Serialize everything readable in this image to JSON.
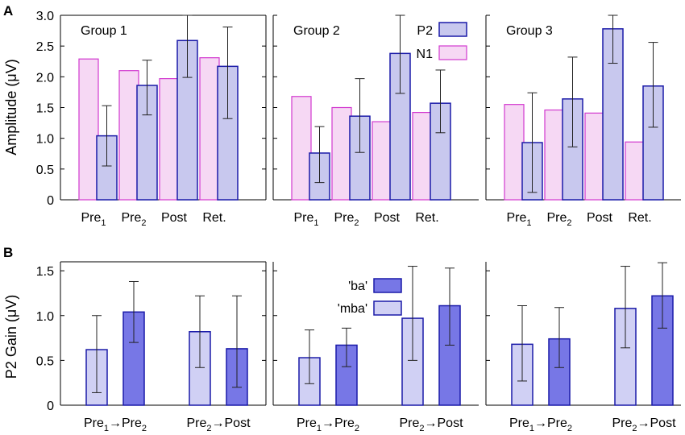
{
  "chart_data": [
    {
      "type": "bar",
      "panel": "A",
      "ylabel": "Amplitude (μV)",
      "ylim": [
        0,
        3.0
      ],
      "yticks": [
        "0",
        "0.5",
        "1.0",
        "1.5",
        "2.0",
        "2.5",
        "3.0"
      ],
      "categories": [
        {
          "base": "Pre",
          "sub": "1"
        },
        {
          "base": "Pre",
          "sub": "2"
        },
        {
          "base": "Post",
          "sub": ""
        },
        {
          "base": "Ret.",
          "sub": ""
        }
      ],
      "legend": [
        {
          "label": "P2",
          "fill": "#c8c8ee",
          "stroke": "#1a1aa8"
        },
        {
          "label": "N1",
          "fill": "#f6d8f4",
          "stroke": "#d239cf"
        }
      ],
      "groups": [
        {
          "name": "Group 1",
          "n1": [
            2.29,
            2.1,
            1.97,
            2.31
          ],
          "p2": [
            1.04,
            1.86,
            2.59,
            2.17
          ],
          "p2_err_low": [
            0.55,
            1.38,
            1.99,
            1.32
          ],
          "p2_err_high": [
            1.53,
            2.27,
            3.0,
            2.81
          ]
        },
        {
          "name": "Group 2",
          "n1": [
            1.68,
            1.5,
            1.27,
            1.42
          ],
          "p2": [
            0.76,
            1.36,
            2.38,
            1.57
          ],
          "p2_err_low": [
            0.28,
            0.77,
            1.73,
            1.09
          ],
          "p2_err_high": [
            1.19,
            1.97,
            3.0,
            2.11
          ]
        },
        {
          "name": "Group 3",
          "n1": [
            1.55,
            1.46,
            1.41,
            0.94
          ],
          "p2": [
            0.93,
            1.64,
            2.78,
            1.85
          ],
          "p2_err_low": [
            0.12,
            0.86,
            2.22,
            1.18
          ],
          "p2_err_high": [
            1.74,
            2.32,
            3.0,
            2.56
          ]
        }
      ]
    },
    {
      "type": "bar",
      "panel": "B",
      "ylabel": "P2 Gain (μV)",
      "ylim": [
        0,
        1.6
      ],
      "yticks": [
        "0",
        "0.5",
        "1.0",
        "1.5"
      ],
      "comparisons": [
        {
          "from": "Pre",
          "from_sub": "1",
          "arrow": "→",
          "to": "Pre",
          "to_sub": "2"
        },
        {
          "from": "Pre",
          "from_sub": "2",
          "arrow": "→",
          "to": "Post",
          "to_sub": ""
        }
      ],
      "legend": [
        {
          "label": "'ba'",
          "fill": "#7777e6",
          "stroke": "#1a1aa8"
        },
        {
          "label": "'mba'",
          "fill": "#d0d0f4",
          "stroke": "#1a1aa8"
        }
      ],
      "groups": [
        {
          "mba": [
            0.62,
            0.82
          ],
          "ba": [
            1.04,
            0.63
          ],
          "mba_err_low": [
            0.14,
            0.42
          ],
          "mba_err_high": [
            1.0,
            1.22
          ],
          "ba_err_low": [
            0.7,
            0.2
          ],
          "ba_err_high": [
            1.38,
            1.22
          ]
        },
        {
          "mba": [
            0.53,
            0.97
          ],
          "ba": [
            0.67,
            1.11
          ],
          "mba_err_low": [
            0.24,
            0.5
          ],
          "mba_err_high": [
            0.84,
            1.55
          ],
          "ba_err_low": [
            0.43,
            0.67
          ],
          "ba_err_high": [
            0.86,
            1.53
          ]
        },
        {
          "mba": [
            0.68,
            1.08
          ],
          "ba": [
            0.74,
            1.22
          ],
          "mba_err_low": [
            0.27,
            0.64
          ],
          "mba_err_high": [
            1.11,
            1.55
          ],
          "ba_err_low": [
            0.42,
            0.86
          ],
          "ba_err_high": [
            1.09,
            1.59
          ]
        }
      ]
    }
  ]
}
